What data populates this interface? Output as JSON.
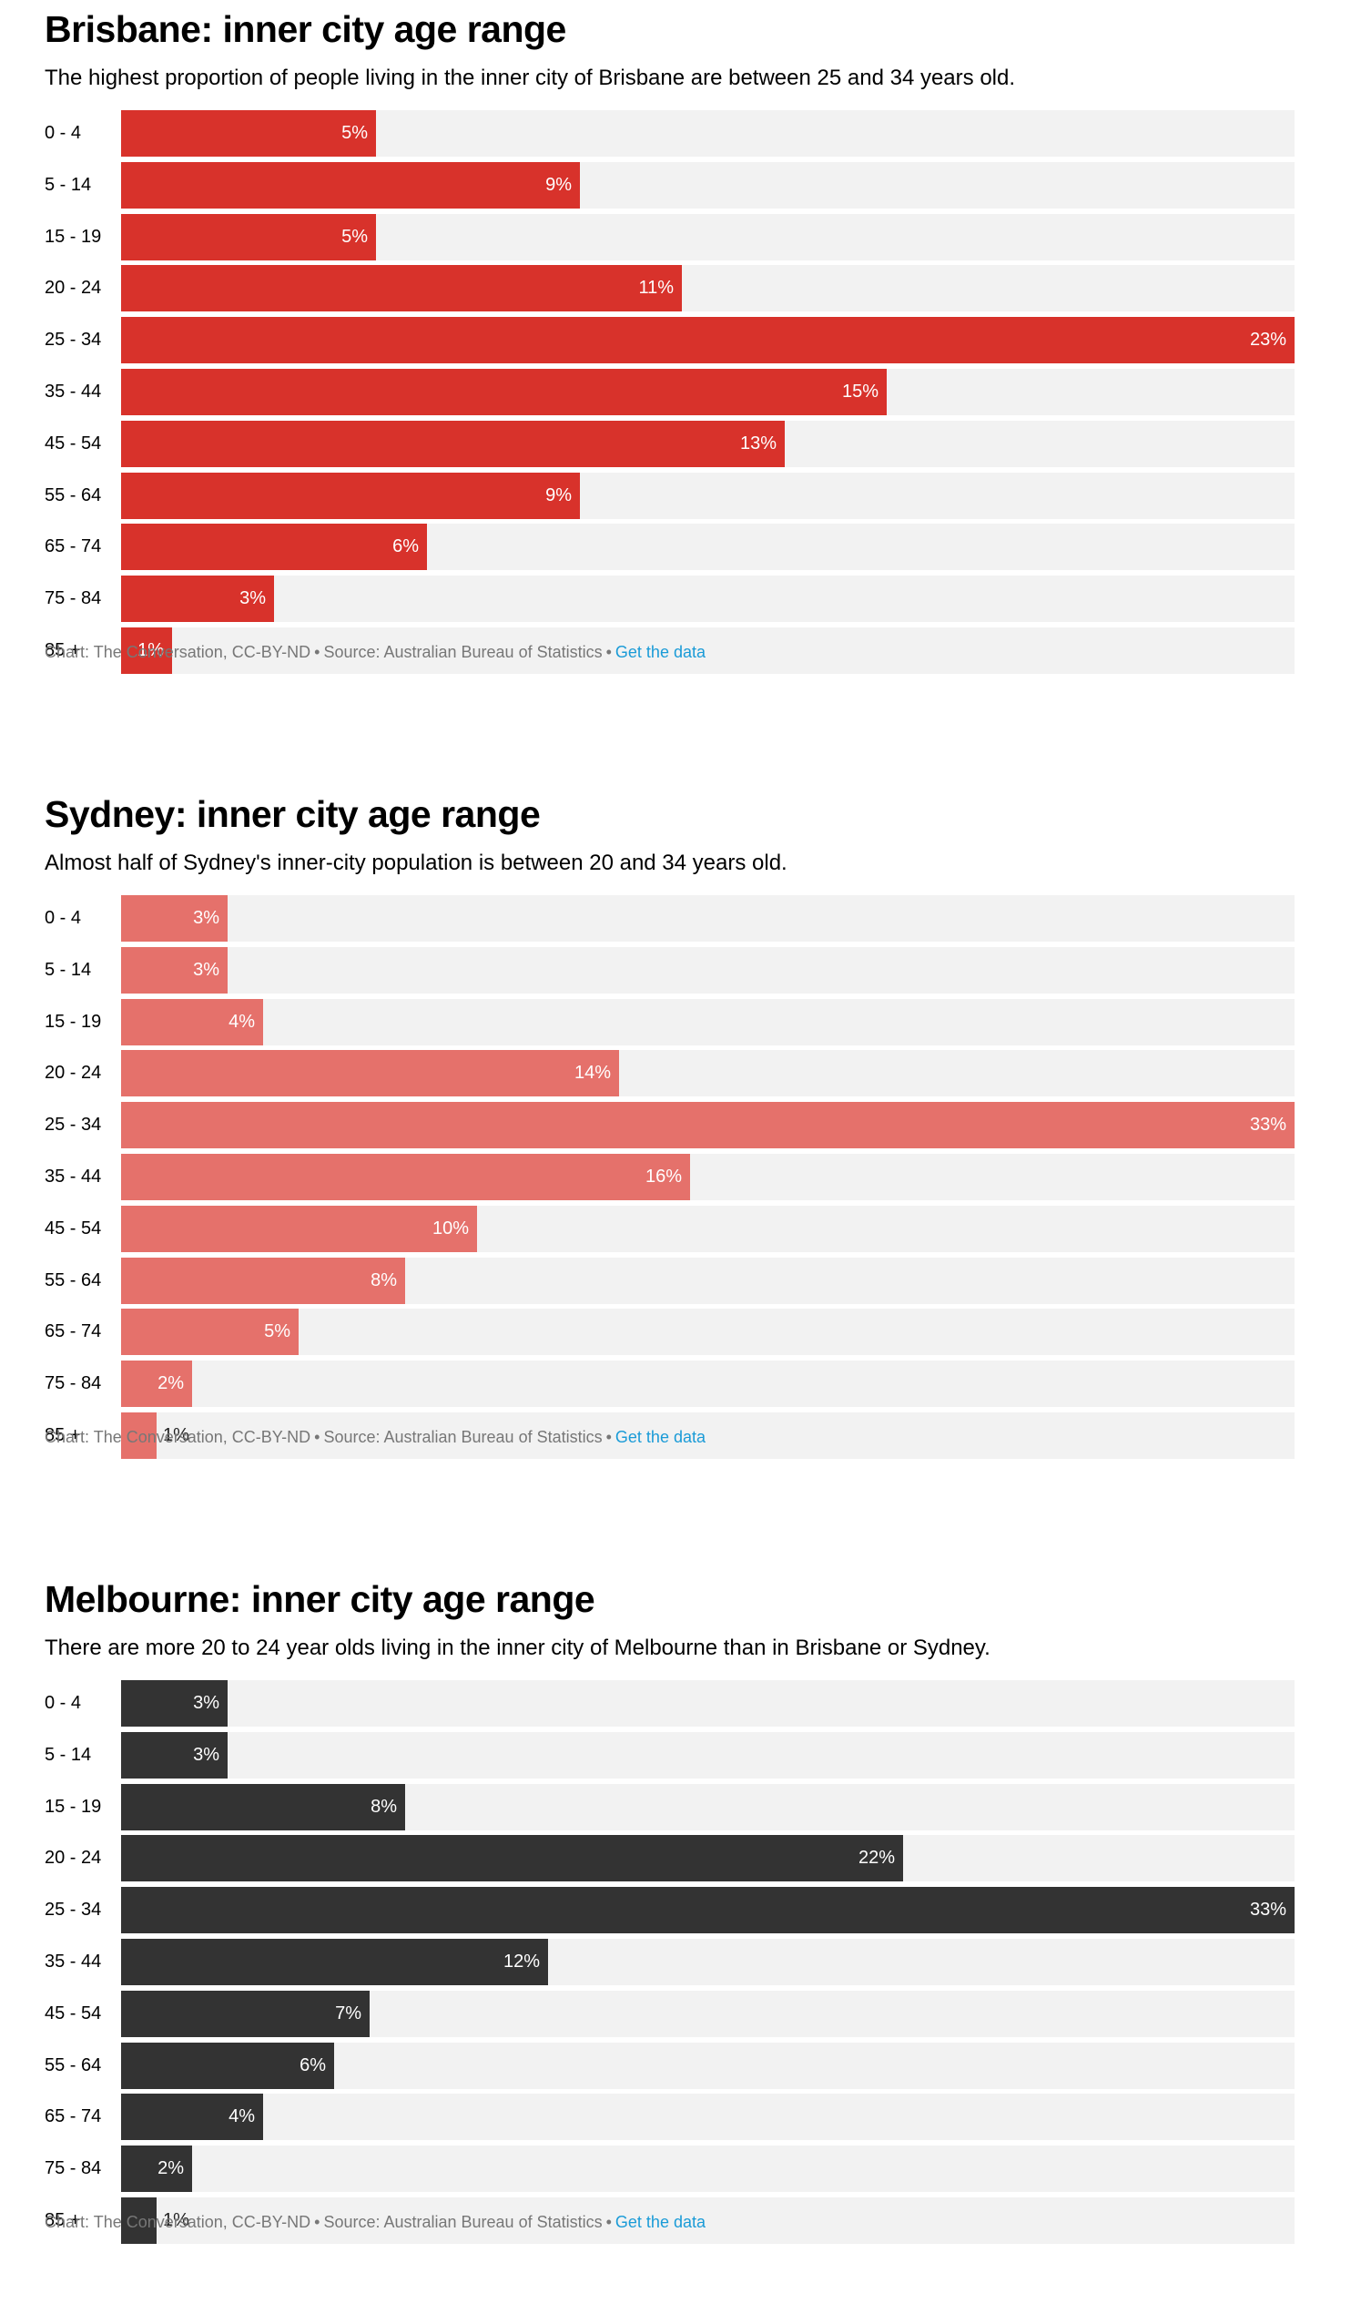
{
  "categories": [
    "0 - 4",
    "5 - 14",
    "15 - 19",
    "20 - 24",
    "25 - 34",
    "35 - 44",
    "45 - 54",
    "55 - 64",
    "65 - 74",
    "75 - 84",
    "85 +"
  ],
  "footer": {
    "credit": "Chart: The Conversation, CC-BY-ND",
    "separator": "•",
    "source": "Source: Australian Bureau of Statistics",
    "link": "Get the data"
  },
  "chart_data": [
    {
      "type": "bar",
      "orientation": "horizontal",
      "title": "Brisbane: inner city age range",
      "subtitle": "The highest proportion of people living in the inner city of Brisbane are between 25 and 34 years old.",
      "categories": [
        "0 - 4",
        "5 - 14",
        "15 - 19",
        "20 - 24",
        "25 - 34",
        "35 - 44",
        "45 - 54",
        "55 - 64",
        "65 - 74",
        "75 - 84",
        "85 +"
      ],
      "values": [
        5,
        9,
        5,
        11,
        23,
        15,
        13,
        9,
        6,
        3,
        1
      ],
      "value_suffix": "%",
      "color": "#d8322b",
      "track_color": "#f2f2f2",
      "xlim": [
        0,
        23
      ]
    },
    {
      "type": "bar",
      "orientation": "horizontal",
      "title": "Sydney: inner city age range",
      "subtitle": "Almost half of Sydney's inner-city population is between 20 and 34 years old.",
      "categories": [
        "0 - 4",
        "5 - 14",
        "15 - 19",
        "20 - 24",
        "25 - 34",
        "35 - 44",
        "45 - 54",
        "55 - 64",
        "65 - 74",
        "75 - 84",
        "85 +"
      ],
      "values": [
        3,
        3,
        4,
        14,
        33,
        16,
        10,
        8,
        5,
        2,
        1
      ],
      "value_suffix": "%",
      "color": "#e5716b",
      "track_color": "#f2f2f2",
      "xlim": [
        0,
        33
      ]
    },
    {
      "type": "bar",
      "orientation": "horizontal",
      "title": "Melbourne: inner city age range",
      "subtitle": "There are more 20 to 24 year olds living in the inner city of Melbourne than in Brisbane or Sydney.",
      "categories": [
        "0 - 4",
        "5 - 14",
        "15 - 19",
        "20 - 24",
        "25 - 34",
        "35 - 44",
        "45 - 54",
        "55 - 64",
        "65 - 74",
        "75 - 84",
        "85 +"
      ],
      "values": [
        3,
        3,
        8,
        22,
        33,
        12,
        7,
        6,
        4,
        2,
        1
      ],
      "value_suffix": "%",
      "color": "#333333",
      "track_color": "#f2f2f2",
      "xlim": [
        0,
        33
      ]
    }
  ]
}
